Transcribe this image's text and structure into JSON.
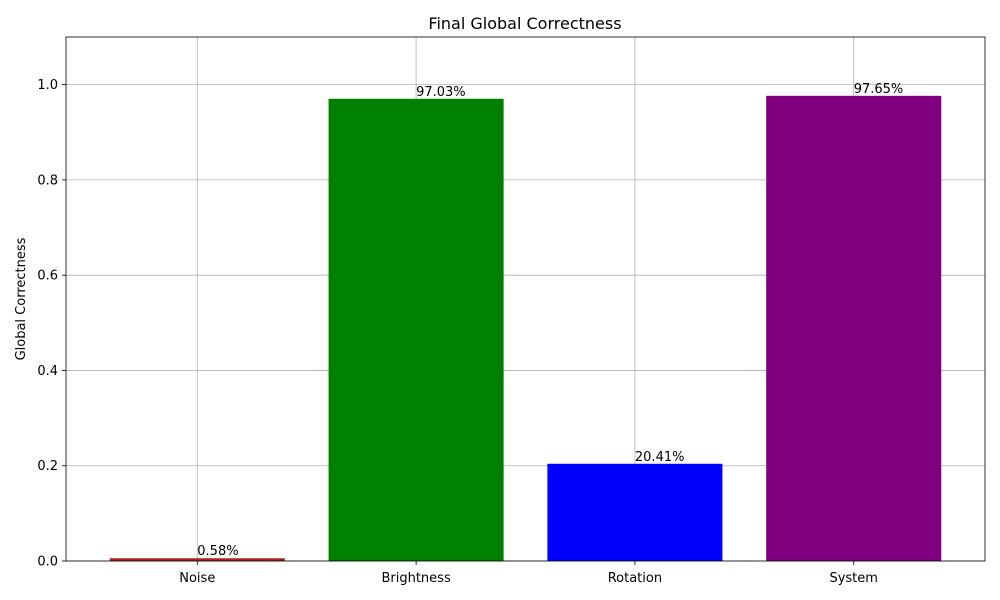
{
  "chart_data": {
    "type": "bar",
    "title": "Final Global Correctness",
    "xlabel": "",
    "ylabel": "Global Correctness",
    "categories": [
      "Noise",
      "Brightness",
      "Rotation",
      "System"
    ],
    "values": [
      0.0058,
      0.9703,
      0.2041,
      0.9765
    ],
    "data_labels": [
      "0.58%",
      "97.03%",
      "20.41%",
      "97.65%"
    ],
    "colors": [
      "#b22222",
      "#008000",
      "#0000ff",
      "#800080"
    ],
    "ylim": [
      0,
      1.1
    ],
    "yticks": [
      0.0,
      0.2,
      0.4,
      0.6,
      0.8,
      1.0
    ],
    "ytick_labels": [
      "0.0",
      "0.2",
      "0.4",
      "0.6",
      "0.8",
      "1.0"
    ],
    "grid": true,
    "legend": false
  }
}
